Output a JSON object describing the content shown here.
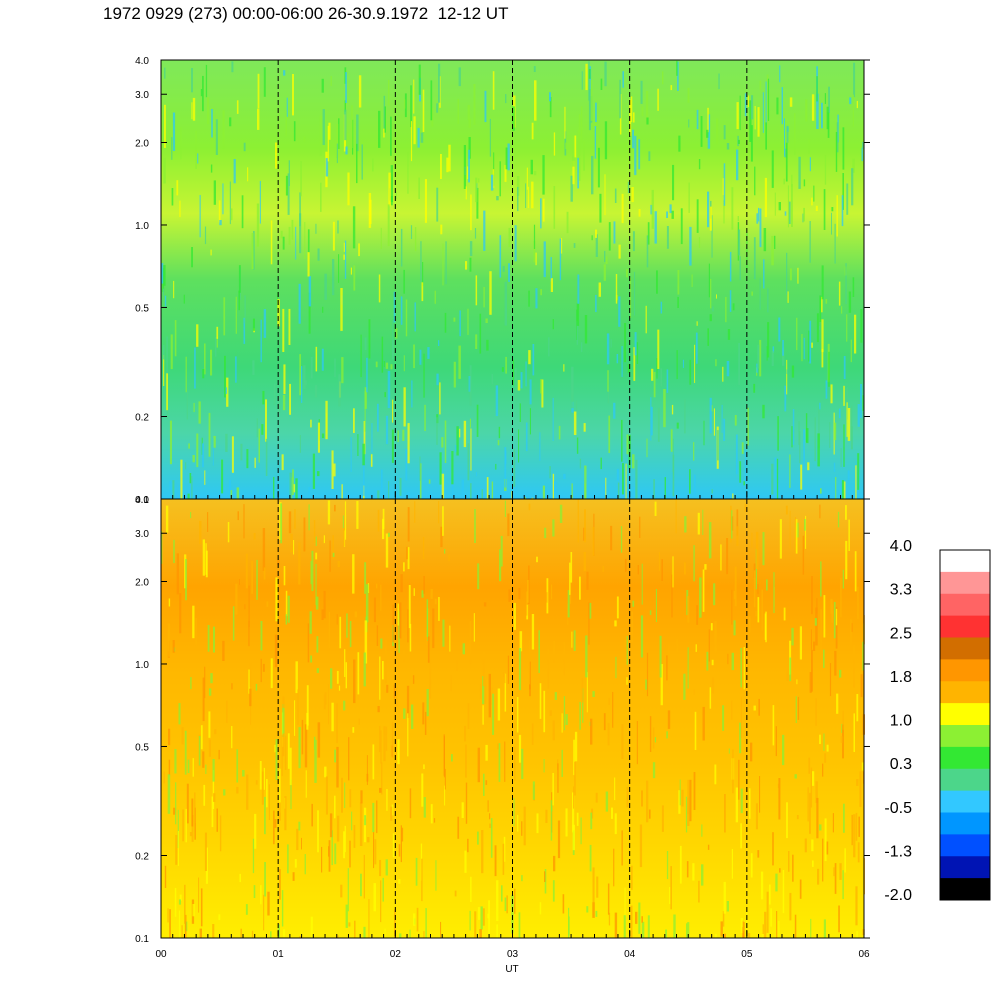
{
  "title": "1972 0929 (273) 00:00-06:00 26-30.9.1972  12-12 UT",
  "chart_data": [
    {
      "type": "heatmap",
      "panel": "upper",
      "xlabel": "",
      "ylabel": "",
      "x_ticks": [
        "00",
        "01",
        "02",
        "03",
        "04",
        "05",
        "06"
      ],
      "xlim": [
        0,
        6
      ],
      "y_ticks": [
        "0.1",
        "0.2",
        "0.5",
        "1.0",
        "2.0",
        "3.0",
        "4.0"
      ],
      "y_tick_values": [
        0.1,
        0.2,
        0.5,
        1.0,
        2.0,
        3.0,
        4.0
      ],
      "ylim": [
        0.1,
        4.0
      ],
      "y_scale": "log",
      "dashed_vlines_at": [
        1,
        2,
        3,
        4,
        5
      ],
      "dominant_colors": [
        "#33e833",
        "#4cd68a",
        "#8cf033",
        "#2ec8f5",
        "#ffff00"
      ]
    },
    {
      "type": "heatmap",
      "panel": "lower",
      "xlabel": "UT",
      "ylabel": "",
      "x_ticks": [
        "00",
        "01",
        "02",
        "03",
        "04",
        "05",
        "06"
      ],
      "xlim": [
        0,
        6
      ],
      "y_ticks": [
        "0.1",
        "0.2",
        "0.5",
        "1.0",
        "2.0",
        "3.0",
        "4.0"
      ],
      "y_tick_values": [
        0.1,
        0.2,
        0.5,
        1.0,
        2.0,
        3.0,
        4.0
      ],
      "ylim": [
        0.1,
        4.0
      ],
      "y_scale": "log",
      "dashed_vlines_at": [
        1,
        2,
        3,
        4,
        5
      ],
      "dominant_colors": [
        "#ffff00",
        "#ffb400",
        "#ff9600",
        "#8cf033"
      ]
    }
  ],
  "colorbar": {
    "labels": [
      "4.0",
      "3.3",
      "2.5",
      "1.8",
      "1.0",
      "0.3",
      "-0.5",
      "-1.3",
      "-2.0"
    ],
    "colors_top_to_bottom": [
      "#ffffff",
      "#ff9696",
      "#ff6464",
      "#ff3232",
      "#d26e00",
      "#ff9600",
      "#ffb400",
      "#ffff00",
      "#8cf033",
      "#33e833",
      "#4cd68a",
      "#32c8ff",
      "#0096ff",
      "#0050ff",
      "#0014b4",
      "#000000"
    ]
  }
}
